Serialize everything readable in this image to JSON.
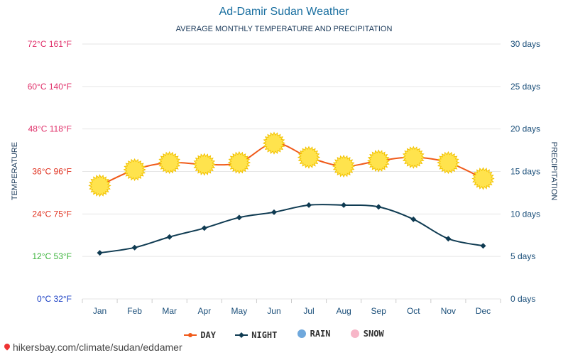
{
  "header": {
    "title": "Ad-Damir Sudan Weather",
    "subtitle": "AVERAGE MONTHLY TEMPERATURE AND PRECIPITATION"
  },
  "chart_data": {
    "type": "line",
    "title": "Ad-Damir Sudan Weather",
    "subtitle": "AVERAGE MONTHLY TEMPERATURE AND PRECIPITATION",
    "categories": [
      "Jan",
      "Feb",
      "Mar",
      "Apr",
      "May",
      "Jun",
      "Jul",
      "Aug",
      "Sep",
      "Oct",
      "Nov",
      "Dec"
    ],
    "series": [
      {
        "name": "DAY",
        "color": "#f05a1a",
        "marker": "sun-icon",
        "values": [
          32,
          36.5,
          38.5,
          38,
          38.5,
          44,
          40,
          37.5,
          39,
          40,
          38.5,
          34
        ]
      },
      {
        "name": "NIGHT",
        "color": "#0f3b52",
        "marker": "diamond",
        "values": [
          13,
          14.5,
          17.5,
          20,
          23,
          24.5,
          26.5,
          26.5,
          26,
          22.5,
          17,
          15
        ]
      }
    ],
    "ylabel_left": "TEMPERATURE",
    "ylabel_right": "PRECIPITATION",
    "ylim": [
      0,
      72
    ],
    "ylim_right": [
      0,
      30
    ],
    "yticks_left": [
      {
        "value": 0,
        "label": "0°C 32°F",
        "color": "#1a3fc4"
      },
      {
        "value": 12,
        "label": "12°C 53°F",
        "color": "#3bb33b"
      },
      {
        "value": 24,
        "label": "24°C 75°F",
        "color": "#e0301e"
      },
      {
        "value": 36,
        "label": "36°C 96°F",
        "color": "#e0301e"
      },
      {
        "value": 48,
        "label": "48°C 118°F",
        "color": "#e0306a"
      },
      {
        "value": 60,
        "label": "60°C 140°F",
        "color": "#e0306a"
      },
      {
        "value": 72,
        "label": "72°C 161°F",
        "color": "#e0306a"
      }
    ],
    "yticks_right": [
      {
        "value": 0,
        "label": "0 days"
      },
      {
        "value": 5,
        "label": "5 days"
      },
      {
        "value": 10,
        "label": "10 days"
      },
      {
        "value": 15,
        "label": "15 days"
      },
      {
        "value": 20,
        "label": "20 days"
      },
      {
        "value": 25,
        "label": "25 days"
      },
      {
        "value": 30,
        "label": "30 days"
      }
    ],
    "grid": true
  },
  "legend": [
    {
      "label": "DAY",
      "color": "#f05a1a",
      "icon": "line-dot-icon"
    },
    {
      "label": "NIGHT",
      "color": "#0f3b52",
      "icon": "line-diamond-icon"
    },
    {
      "label": "RAIN",
      "color": "#6fa8dc",
      "icon": "circle-icon"
    },
    {
      "label": "SNOW",
      "color": "#f7b6c8",
      "icon": "circle-icon"
    }
  ],
  "footer": {
    "link_text": "hikersbay.com/climate/sudan/eddamer",
    "pin_color": "#e33333"
  },
  "colors": {
    "axis_text_right": "#1b4f7a",
    "month_text": "#1b4f7a",
    "grid": "#e6e6e6",
    "sun_fill": "#ffe34d",
    "sun_stroke": "#f2c200"
  }
}
